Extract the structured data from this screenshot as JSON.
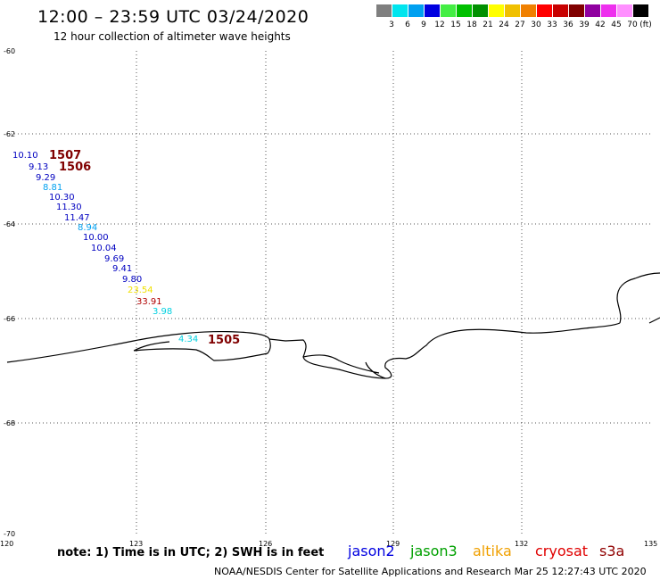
{
  "title": "12:00 – 23:59 UTC 03/24/2020",
  "subtitle": "12 hour collection of altimeter wave heights",
  "colorbar": {
    "unit": "(ft)",
    "colors": [
      "#7f7f7f",
      "#00e5ee",
      "#00a0f0",
      "#0000e0",
      "#44ee44",
      "#00c000",
      "#009000",
      "#ffff00",
      "#f0c000",
      "#f08000",
      "#ff0000",
      "#c80000",
      "#800000",
      "#9000a0",
      "#ee30ee",
      "#ff90ff",
      "#000000"
    ],
    "labels": [
      "3",
      "6",
      "9",
      "12",
      "15",
      "18",
      "21",
      "24",
      "27",
      "30",
      "33",
      "36",
      "39",
      "42",
      "45",
      "70"
    ]
  },
  "axes": {
    "lat_labels": [
      "-60",
      "-62",
      "-64",
      "-66",
      "-68",
      "-70"
    ],
    "lon_labels": [
      "120",
      "123",
      "126",
      "129",
      "132",
      "135"
    ]
  },
  "wave_labels": [
    {
      "text": "10.10",
      "color": "#0000c0"
    },
    {
      "text": "9.13",
      "color": "#0000c0"
    },
    {
      "text": "9.29",
      "color": "#0000c0"
    },
    {
      "text": "8.81",
      "color": "#00a0f0"
    },
    {
      "text": "10.30",
      "color": "#0000c0"
    },
    {
      "text": "11.30",
      "color": "#0000c0"
    },
    {
      "text": "11.47",
      "color": "#0000c0"
    },
    {
      "text": "8.94",
      "color": "#00a0f0"
    },
    {
      "text": "10.00",
      "color": "#0000c0"
    },
    {
      "text": "10.04",
      "color": "#0000c0"
    },
    {
      "text": "9.69",
      "color": "#0000c0"
    },
    {
      "text": "9.41",
      "color": "#0000c0"
    },
    {
      "text": "9.80",
      "color": "#0000c0"
    },
    {
      "text": "23.54",
      "color": "#f0e000"
    },
    {
      "text": "33.91",
      "color": "#b00000"
    },
    {
      "text": "3.98",
      "color": "#00d0e0"
    },
    {
      "text": "4.34",
      "color": "#00d0e0"
    }
  ],
  "time_labels": [
    {
      "text": "1507",
      "color": "#800000"
    },
    {
      "text": "1506",
      "color": "#800000"
    },
    {
      "text": "1505",
      "color": "#800000"
    }
  ],
  "note": "note: 1) Time is in UTC; 2) SWH is in feet",
  "satellites": [
    {
      "name": "jason2",
      "color": "#0000e0"
    },
    {
      "name": "jason3",
      "color": "#00a000"
    },
    {
      "name": "altika",
      "color": "#f0a000"
    },
    {
      "name": "cryosat",
      "color": "#e00000"
    },
    {
      "name": "s3a",
      "color": "#900000"
    }
  ],
  "footer": "NOAA/NESDIS Center for Satellite Applications and Research    Mar 25 12:27:43 UTC 2020"
}
